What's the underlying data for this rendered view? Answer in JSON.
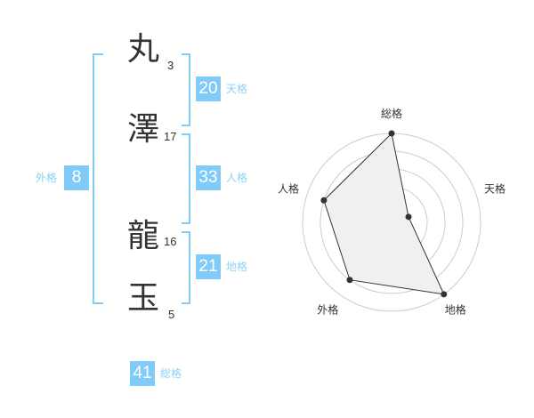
{
  "name": [
    {
      "char": "丸",
      "strokes": "3"
    },
    {
      "char": "澤",
      "strokes": "17"
    },
    {
      "char": "龍",
      "strokes": "16"
    },
    {
      "char": "玉",
      "strokes": "5"
    }
  ],
  "kaku": {
    "tenkaku": {
      "label": "天格",
      "value": "20"
    },
    "jinkaku": {
      "label": "人格",
      "value": "33"
    },
    "chikaku": {
      "label": "地格",
      "value": "21"
    },
    "gaikaku": {
      "label": "外格",
      "value": "8"
    },
    "soukaku": {
      "label": "総格",
      "value": "41"
    }
  },
  "colors": {
    "accent": "#80cbf7",
    "label": "#8fd0f5",
    "radar_fill": "#f0f0f0",
    "radar_line": "#333333"
  },
  "chart_data": {
    "type": "radar",
    "axes": [
      "総格",
      "天格",
      "地格",
      "外格",
      "人格"
    ],
    "values": [
      5,
      1,
      5,
      4,
      4
    ],
    "range": [
      0,
      5
    ],
    "rings": 5
  }
}
